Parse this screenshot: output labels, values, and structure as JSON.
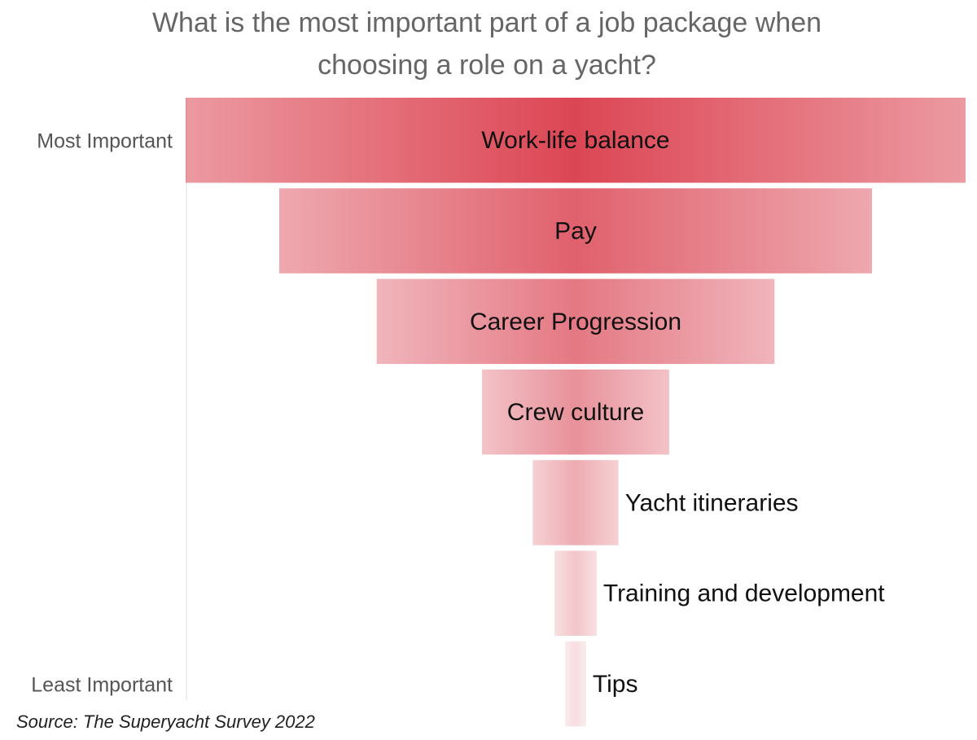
{
  "chart_data": {
    "type": "funnel",
    "title": [
      "What is the most important part of a job package when",
      "choosing a role on a yacht?"
    ],
    "top_label": "Most Important",
    "bottom_label": "Least Important",
    "source": "Source: The Superyacht Survey 2022",
    "categories": [
      "Work-life balance",
      "Pay",
      "Career Progression",
      "Crew culture",
      "Yacht itineraries",
      "Training and development",
      "Tips"
    ],
    "values": [
      100,
      76,
      51,
      24,
      11,
      5.4,
      2.7
    ],
    "colors": [
      "#dc4654",
      "#e0616d",
      "#e47883",
      "#e8919a",
      "#edabb1",
      "#f2c5c9",
      "#f7dde0"
    ]
  }
}
